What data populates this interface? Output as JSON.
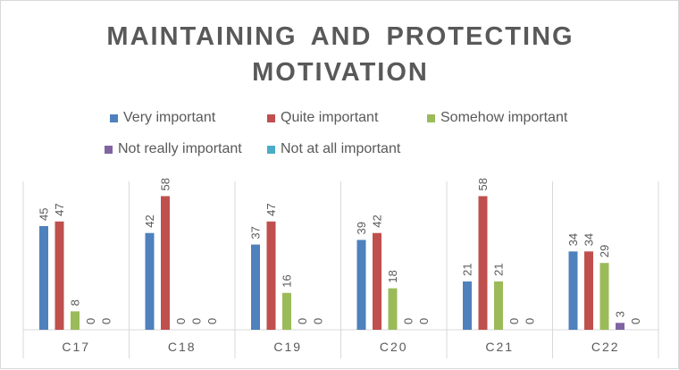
{
  "chart_data": {
    "type": "bar",
    "title_line1": "MAINTAINING AND PROTECTING",
    "title_line2": "MOTIVATION",
    "categories": [
      "C17",
      "C18",
      "C19",
      "C20",
      "C21",
      "C22"
    ],
    "series": [
      {
        "name": "Very important",
        "color": "#4f81bd",
        "values": [
          45,
          42,
          37,
          39,
          21,
          34
        ]
      },
      {
        "name": "Quite important",
        "color": "#c0504d",
        "values": [
          47,
          58,
          47,
          42,
          58,
          34
        ]
      },
      {
        "name": "Somehow important",
        "color": "#9bbb59",
        "values": [
          8,
          0,
          16,
          18,
          21,
          29
        ]
      },
      {
        "name": "Not really important",
        "color": "#8064a2",
        "values": [
          0,
          0,
          0,
          0,
          0,
          3
        ]
      },
      {
        "name": "Not at all important",
        "color": "#4bacc6",
        "values": [
          0,
          0,
          0,
          0,
          0,
          0
        ]
      }
    ],
    "xlabel": "",
    "ylabel": "",
    "ylim": [
      0,
      64
    ],
    "grid": false,
    "legend_position": "top"
  }
}
